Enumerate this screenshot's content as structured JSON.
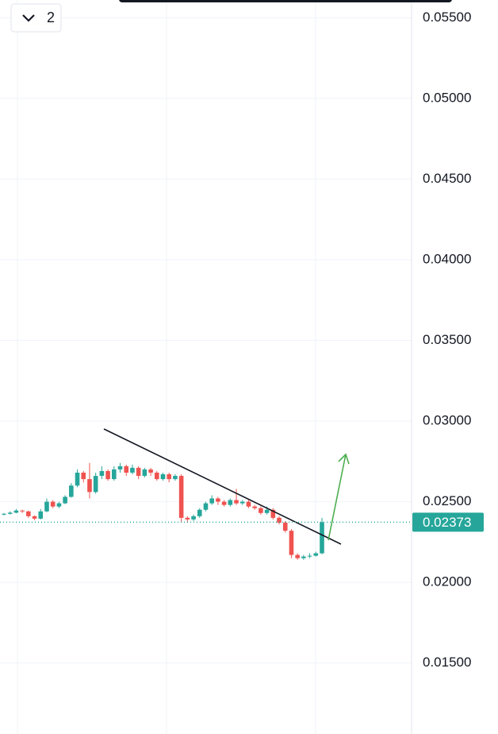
{
  "chart_data": {
    "type": "candlestick",
    "interval_label": "2",
    "open": [
      0.0242,
      0.02425,
      0.02432,
      0.02445,
      0.0244,
      0.0241,
      0.02395,
      0.0244,
      0.025,
      0.0247,
      0.0249,
      0.0253,
      0.026,
      0.0268,
      0.0264,
      0.0256,
      0.0266,
      0.0269,
      0.0264,
      0.027,
      0.0272,
      0.0268,
      0.0271,
      0.0266,
      0.027,
      0.0268,
      0.0264,
      0.0267,
      0.0264,
      0.0266,
      0.024,
      0.0239,
      0.0241,
      0.0245,
      0.0249,
      0.0252,
      0.025,
      0.0248,
      0.0251,
      0.0249,
      0.025,
      0.0247,
      0.0246,
      0.0243,
      0.0245,
      0.024,
      0.0237,
      0.0232,
      0.0217,
      0.0215,
      0.0216,
      0.02165,
      0.0218
    ],
    "high": [
      0.0243,
      0.0244,
      0.02455,
      0.0245,
      0.02445,
      0.02415,
      0.02455,
      0.0252,
      0.0251,
      0.025,
      0.0254,
      0.02615,
      0.027,
      0.0269,
      0.0274,
      0.0268,
      0.0272,
      0.027,
      0.0272,
      0.0274,
      0.0273,
      0.0273,
      0.0272,
      0.0271,
      0.0271,
      0.0269,
      0.0268,
      0.0268,
      0.0267,
      0.0267,
      0.0241,
      0.0242,
      0.0246,
      0.025,
      0.0254,
      0.0253,
      0.0251,
      0.0252,
      0.0258,
      0.0251,
      0.0251,
      0.0248,
      0.0247,
      0.0247,
      0.0246,
      0.0241,
      0.0238,
      0.0233,
      0.0218,
      0.0217,
      0.0218,
      0.0219,
      0.024
    ],
    "low": [
      0.02415,
      0.0242,
      0.02428,
      0.0243,
      0.024,
      0.02385,
      0.0239,
      0.02435,
      0.0246,
      0.0246,
      0.02485,
      0.02525,
      0.0259,
      0.0262,
      0.0252,
      0.0255,
      0.0264,
      0.0263,
      0.0263,
      0.0268,
      0.0266,
      0.0267,
      0.0264,
      0.0265,
      0.0266,
      0.0263,
      0.0263,
      0.0262,
      0.0263,
      0.0237,
      0.0237,
      0.0238,
      0.024,
      0.0244,
      0.0248,
      0.0248,
      0.0247,
      0.0247,
      0.0248,
      0.0248,
      0.0246,
      0.0245,
      0.0242,
      0.0242,
      0.0239,
      0.0236,
      0.0231,
      0.0215,
      0.0214,
      0.0214,
      0.0215,
      0.0216,
      0.02175
    ],
    "close": [
      0.02425,
      0.02432,
      0.02445,
      0.0244,
      0.0241,
      0.02395,
      0.0244,
      0.025,
      0.0247,
      0.0249,
      0.0253,
      0.026,
      0.0268,
      0.0264,
      0.0256,
      0.0266,
      0.0269,
      0.0264,
      0.027,
      0.0272,
      0.0268,
      0.0271,
      0.0266,
      0.027,
      0.0268,
      0.0264,
      0.0267,
      0.0264,
      0.0266,
      0.024,
      0.0239,
      0.0241,
      0.0245,
      0.0249,
      0.0252,
      0.025,
      0.0248,
      0.0251,
      0.0249,
      0.025,
      0.0247,
      0.0246,
      0.0243,
      0.0245,
      0.024,
      0.0237,
      0.0232,
      0.0217,
      0.0215,
      0.0216,
      0.02165,
      0.0218,
      0.02373
    ],
    "up_color": "#26a69a",
    "down_color": "#ef5350",
    "current_price": {
      "value": 0.02373,
      "label": "0.02373"
    },
    "ylim": [
      0.0106,
      0.0561
    ],
    "yticks": [
      {
        "value": 0.015,
        "label": "0.01500"
      },
      {
        "value": 0.02,
        "label": "0.02000"
      },
      {
        "value": 0.025,
        "label": "0.02500"
      },
      {
        "value": 0.03,
        "label": "0.03000"
      },
      {
        "value": 0.035,
        "label": "0.03500"
      },
      {
        "value": 0.04,
        "label": "0.04000"
      },
      {
        "value": 0.045,
        "label": "0.04500"
      },
      {
        "value": 0.05,
        "label": "0.05000"
      },
      {
        "value": 0.055,
        "label": "0.05500"
      }
    ],
    "grid": true
  }
}
